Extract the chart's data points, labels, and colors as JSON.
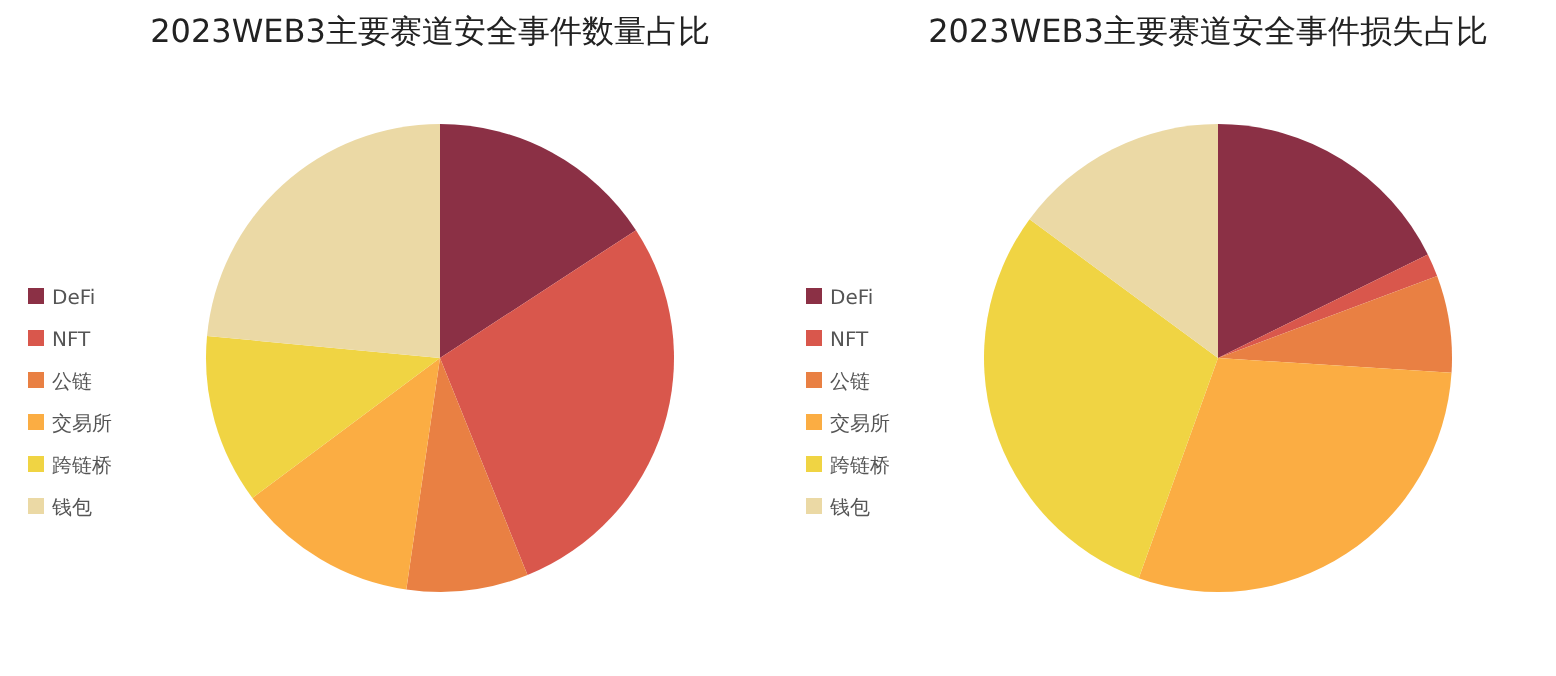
{
  "chart_data": [
    {
      "type": "pie",
      "title": "2023WEB3主要赛道安全事件数量占比",
      "categories": [
        "DeFi",
        "NFT",
        "公链",
        "交易所",
        "跨链桥",
        "钱包"
      ],
      "values": [
        15.8,
        28.1,
        8.4,
        12.5,
        11.7,
        23.5
      ],
      "colors": [
        "#8b3045",
        "#d9574c",
        "#e98043",
        "#fbad43",
        "#f0d443",
        "#ebd9a5"
      ],
      "legend": "left"
    },
    {
      "type": "pie",
      "title": "2023WEB3主要赛道安全事件损失占比",
      "categories": [
        "DeFi",
        "NFT",
        "公链",
        "交易所",
        "跨链桥",
        "钱包"
      ],
      "values": [
        17.7,
        1.6,
        6.7,
        29.5,
        29.6,
        14.9
      ],
      "colors": [
        "#8b3045",
        "#d9574c",
        "#e98043",
        "#fbad43",
        "#f0d443",
        "#ebd9a5"
      ],
      "legend": "left"
    }
  ]
}
